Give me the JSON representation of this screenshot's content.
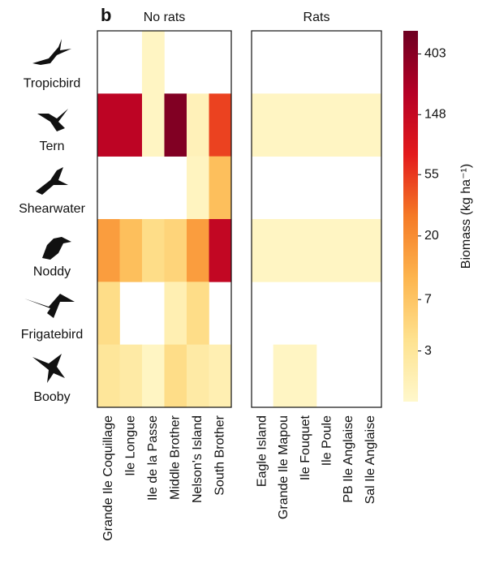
{
  "chart_data": {
    "type": "heatmap",
    "panel_label": "b",
    "rows": [
      "Tropicbird",
      "Tern",
      "Shearwater",
      "Noddy",
      "Frigatebird",
      "Booby"
    ],
    "panels": [
      {
        "title": "No rats",
        "columns": [
          "Grande Ile Coquillage",
          "Ile Longue",
          "Ile de la Passe",
          "Middle Brother",
          "Nelson's Island",
          "South Brother"
        ],
        "values": [
          [
            null,
            null,
            1.5,
            null,
            null,
            null
          ],
          [
            180,
            180,
            1.5,
            450,
            1.8,
            50
          ],
          [
            null,
            null,
            null,
            null,
            1.6,
            8
          ],
          [
            15,
            8,
            4,
            5,
            15,
            160
          ],
          [
            4,
            null,
            null,
            2,
            4,
            null
          ],
          [
            3,
            2.5,
            1.5,
            4,
            2.5,
            2
          ]
        ]
      },
      {
        "title": "Rats",
        "columns": [
          "Eagle Island",
          "Grande Ile Mapou",
          "Ile Fouquet",
          "Ile Poule",
          "PB Ile Anglaise",
          "Sal Ile Anglaise"
        ],
        "values": [
          [
            null,
            null,
            null,
            null,
            null,
            null
          ],
          [
            1.5,
            1.5,
            1.5,
            1.5,
            1.5,
            1.5
          ],
          [
            null,
            null,
            null,
            null,
            null,
            null
          ],
          [
            1.5,
            1.5,
            1.5,
            1.5,
            1.5,
            1.5
          ],
          [
            null,
            null,
            null,
            null,
            null,
            null
          ],
          [
            null,
            1.5,
            1.5,
            null,
            null,
            null
          ]
        ]
      }
    ],
    "colorbar": {
      "label": "Biomass (kg ha⁻¹)",
      "scale": "log",
      "lim": [
        1.3,
        590
      ],
      "ticks": [
        3,
        7,
        20,
        55,
        148,
        403
      ],
      "colors": [
        "#fff8cc",
        "#fee28f",
        "#fdb54e",
        "#f57a26",
        "#e31a1c",
        "#b50026",
        "#6e0022"
      ]
    }
  }
}
